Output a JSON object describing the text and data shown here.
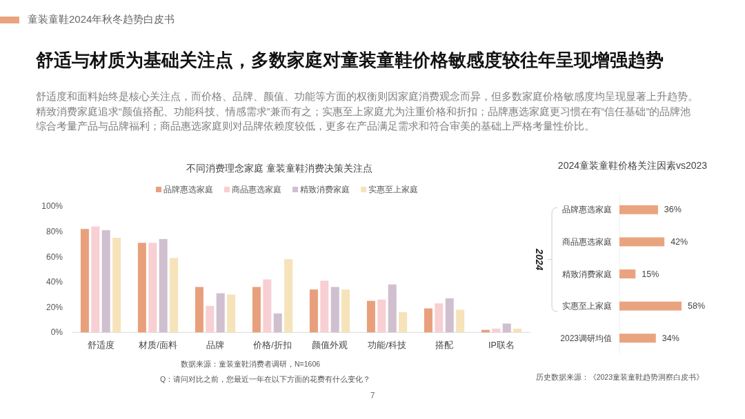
{
  "chart_data": [
    {
      "type": "other",
      "title": "舒适与材质为基础关注点，多数家庭对童装童鞋价格敏感度较往年呈现增强趋势",
      "subtitle": "舒适度和面料始终是核心关注点，而价格、品牌、颜值、功能等方面的权衡则因家庭消费观念而异，但多数家庭价格敏感度均呈现显著上升趋势。",
      "annotations": [
        "童装童鞋2024年秋冬趋势白皮书",
        "精致消费家庭追求“颜值搭配、功能科技、情感需求”兼而有之；实惠至上家庭尤为注重价格和折扣；品牌惠选家庭更习惯在有“信任基础”的品牌池综合考量产品与品牌福利；商品惠选家庭则对品牌依赖度较低，更多在产品满足需求和符合审美的基础上严格考量性价比。",
        "7"
      ]
    },
    {
      "type": "bar",
      "title": "不同消费理念家庭 童装童鞋消费决策关注点",
      "categories": [
        "舒适度",
        "材质/面料",
        "品牌",
        "价格/折扣",
        "颜值外观",
        "功能/科技",
        "搭配",
        "IP联名"
      ],
      "series": [
        {
          "name": "品牌惠选家庭",
          "color": "#e8a07c",
          "values": [
            82,
            71,
            36,
            36,
            34,
            25,
            19,
            2
          ]
        },
        {
          "name": "商品惠选家庭",
          "color": "#f8cfd3",
          "values": [
            84,
            71,
            21,
            42,
            41,
            26,
            23,
            3
          ]
        },
        {
          "name": "精致消费家庭",
          "color": "#cfbfcf",
          "values": [
            81,
            74,
            31,
            15,
            36,
            38,
            27,
            7
          ]
        },
        {
          "name": "实惠至上家庭",
          "color": "#f6e3ba",
          "values": [
            75,
            59,
            30,
            58,
            34,
            16,
            18,
            3
          ]
        }
      ],
      "ylim": [
        0,
        100
      ],
      "yticks": [
        {
          "value": 0,
          "label": "0%"
        },
        {
          "value": 20,
          "label": "20%"
        },
        {
          "value": 40,
          "label": "40%"
        },
        {
          "value": 60,
          "label": "60%"
        },
        {
          "value": 80,
          "label": "80%"
        },
        {
          "value": 100,
          "label": "100%"
        }
      ],
      "legend": "top",
      "grid": false,
      "annotations": [
        "数据来源：童装童鞋消费者调研，N=1606",
        "Q：请问对比之前，您最近一年在以下方面的花费有什么变化？"
      ]
    },
    {
      "type": "bar",
      "orientation": "horizontal",
      "title": "2024童装童鞋价格关注因素vs2023",
      "ylabel": "2024",
      "categories": [
        "品牌惠选家庭",
        "商品惠选家庭",
        "精致消费家庭",
        "实惠至上家庭",
        "2023调研均值"
      ],
      "values": [
        36,
        42,
        15,
        58,
        34
      ],
      "color": "#e9a47f",
      "value_labels": [
        "36%",
        "42%",
        "15%",
        "58%",
        "34%"
      ],
      "annotations": [
        "历史数据来源：《2023童装童鞋趋势洞察白皮书》"
      ]
    }
  ]
}
